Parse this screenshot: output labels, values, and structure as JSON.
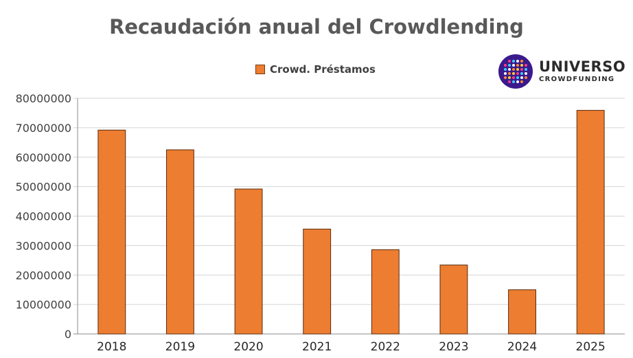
{
  "chart_data": {
    "type": "bar",
    "title": "Recaudación anual del Crowdlending",
    "categories": [
      "2018",
      "2019",
      "2020",
      "2021",
      "2022",
      "2023",
      "2024",
      "2025"
    ],
    "series": [
      {
        "name": "Crowd. Préstamos",
        "values": [
          69200000,
          62500000,
          49200000,
          35600000,
          28600000,
          23400000,
          15000000,
          75900000
        ]
      }
    ],
    "ylim": [
      0,
      80000000
    ],
    "yticks": [
      "0",
      "10000000",
      "20000000",
      "30000000",
      "40000000",
      "50000000",
      "60000000",
      "70000000",
      "80000000"
    ],
    "grid": true,
    "legend": "top-center",
    "bar_color": "#ED7D31",
    "bar_edge_color": "#5a2a0c"
  },
  "logo": {
    "name": "UNIVERSO",
    "tagline": "CROWDFUNDING"
  }
}
